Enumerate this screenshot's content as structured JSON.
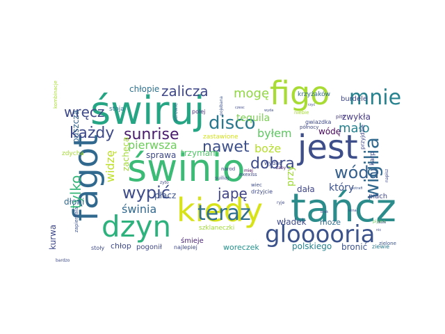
{
  "words": [
    {
      "text": "świruj",
      "color": "#26a584"
    },
    {
      "text": "tańcz",
      "color": "#2c8c8c"
    },
    {
      "text": "świnio",
      "color": "#3bbb75"
    },
    {
      "text": "fagot",
      "color": "#31688e"
    },
    {
      "text": "jest",
      "color": "#3d4e8a"
    },
    {
      "text": "figo",
      "color": "#a8db34"
    },
    {
      "text": "kiedy",
      "color": "#d8e219"
    },
    {
      "text": "dzyn",
      "color": "#2db27d"
    },
    {
      "text": "glooooria",
      "color": "#3b528b"
    },
    {
      "text": "mnie",
      "color": "#26828e"
    },
    {
      "text": "teraz",
      "color": "#2e6e8e"
    },
    {
      "text": "każdy",
      "color": "#3e4a89"
    },
    {
      "text": "sunrise",
      "color": "#481a6c"
    },
    {
      "text": "disco",
      "color": "#2a788e"
    },
    {
      "text": "wigilia",
      "color": "#31688e"
    },
    {
      "text": "wóda",
      "color": "#35608d"
    },
    {
      "text": "nawet",
      "color": "#3c4f8a"
    },
    {
      "text": "dobra",
      "color": "#3e4c8a"
    },
    {
      "text": "zalicza",
      "color": "#3f4788"
    },
    {
      "text": "mogę",
      "color": "#90d743"
    },
    {
      "text": "wręcz",
      "color": "#3e4a89"
    },
    {
      "text": "wypić",
      "color": "#3e4c8a"
    },
    {
      "text": "tylko",
      "color": "#35b779"
    },
    {
      "text": "japę",
      "color": "#414487"
    },
    {
      "text": "mało",
      "color": "#26818e"
    },
    {
      "text": "świnia",
      "color": "#31688e"
    },
    {
      "text": "pierwsza",
      "color": "#6ccd5a"
    },
    {
      "text": "byłem",
      "color": "#5ec962"
    },
    {
      "text": "boże",
      "color": "#b5de2b"
    },
    {
      "text": "tequila",
      "color": "#7ad151"
    },
    {
      "text": "widzę",
      "color": "#bddf26"
    },
    {
      "text": "puszcza",
      "color": "#33638d"
    },
    {
      "text": "przy",
      "color": "#a0da39"
    },
    {
      "text": "który",
      "color": "#3b528b"
    },
    {
      "text": "zwykła",
      "color": "#443983"
    },
    {
      "text": "wódę",
      "color": "#450559"
    },
    {
      "text": "dała",
      "color": "#404688"
    },
    {
      "text": "chłopie",
      "color": "#2d718e"
    },
    {
      "text": "zacheca",
      "color": "#a2da37"
    },
    {
      "text": "sprawa",
      "color": "#3e4989"
    },
    {
      "text": "trzymam",
      "color": "#52c569"
    },
    {
      "text": "płacz",
      "color": "#3b528b"
    },
    {
      "text": "kurwa",
      "color": "#3f4889"
    },
    {
      "text": "dłoni",
      "color": "#31688e"
    },
    {
      "text": "władek",
      "color": "#3e4a89"
    },
    {
      "text": "może",
      "color": "#2f6c8e"
    },
    {
      "text": "polskiego",
      "color": "#26828e"
    },
    {
      "text": "bronić",
      "color": "#3b528b"
    },
    {
      "text": "woreczek",
      "color": "#21918c"
    },
    {
      "text": "chłop",
      "color": "#3e4989"
    },
    {
      "text": "pogonił",
      "color": "#3f4788"
    },
    {
      "text": "śmieje",
      "color": "#482374"
    },
    {
      "text": "burdele",
      "color": "#3f4788"
    },
    {
      "text": "piach",
      "color": "#3f4788"
    },
    {
      "text": "krzyżaków",
      "color": "#31688e"
    },
    {
      "text": "gwiazdka",
      "color": "#3e4989"
    },
    {
      "text": "zdycha",
      "color": "#a5db36"
    },
    {
      "text": "stoja",
      "color": "#2a788e"
    },
    {
      "text": "polej",
      "color": "#472d7b"
    },
    {
      "text": "zastawione",
      "color": "#d2e21b"
    },
    {
      "text": "wydać",
      "color": "#3e4989"
    },
    {
      "text": "drżyjcie",
      "color": "#3e4989"
    },
    {
      "text": "karp",
      "color": "#3e4a89"
    },
    {
      "text": "szklaneczki",
      "color": "#a2da37"
    },
    {
      "text": "północy",
      "color": "#3f4788"
    },
    {
      "text": "zielone",
      "color": "#3b528b"
    },
    {
      "text": "ziewie",
      "color": "#2a788e"
    },
    {
      "text": "pito",
      "color": "#443983"
    },
    {
      "text": "wiec",
      "color": "#3e4c8a"
    },
    {
      "text": "narod",
      "color": "#3f4788"
    },
    {
      "text": "miej",
      "color": "#440154"
    },
    {
      "text": "exexiss",
      "color": "#3e4989"
    },
    {
      "text": "suiliaj",
      "color": "#3e4c8a"
    },
    {
      "text": "zapierdala",
      "color": "#3b528b"
    },
    {
      "text": "stoły",
      "color": "#3e4989"
    },
    {
      "text": "najlepiej",
      "color": "#3e4989"
    },
    {
      "text": "niebie",
      "color": "#a5db36"
    },
    {
      "text": "napisz",
      "color": "#3e4a89"
    },
    {
      "text": "przyjdzie",
      "color": "#3f4788"
    },
    {
      "text": "pijana",
      "color": "#6ccd5a"
    },
    {
      "text": "zaby",
      "color": "#482374"
    },
    {
      "text": "potrafi",
      "color": "#3b528b"
    },
    {
      "text": "bardzo",
      "color": "#3e4989"
    },
    {
      "text": "zdrowie",
      "color": "#31688e"
    },
    {
      "text": "pojebana",
      "color": "#3b528b"
    },
    {
      "text": "czesc",
      "color": "#3e4989"
    },
    {
      "text": "wyda",
      "color": "#3e4c8a"
    },
    {
      "text": "rzyć",
      "color": "#3e4989"
    },
    {
      "text": "zyto",
      "color": "#3e4989"
    },
    {
      "text": "ryje",
      "color": "#3e4989"
    },
    {
      "text": "brak",
      "color": "#3e4c8a"
    },
    {
      "text": "wina",
      "color": "#3e4989"
    },
    {
      "text": "nic",
      "color": "#3e4989"
    },
    {
      "text": "duża",
      "color": "#3e4989"
    },
    {
      "text": "kombinacje",
      "color": "#a8db34"
    }
  ]
}
